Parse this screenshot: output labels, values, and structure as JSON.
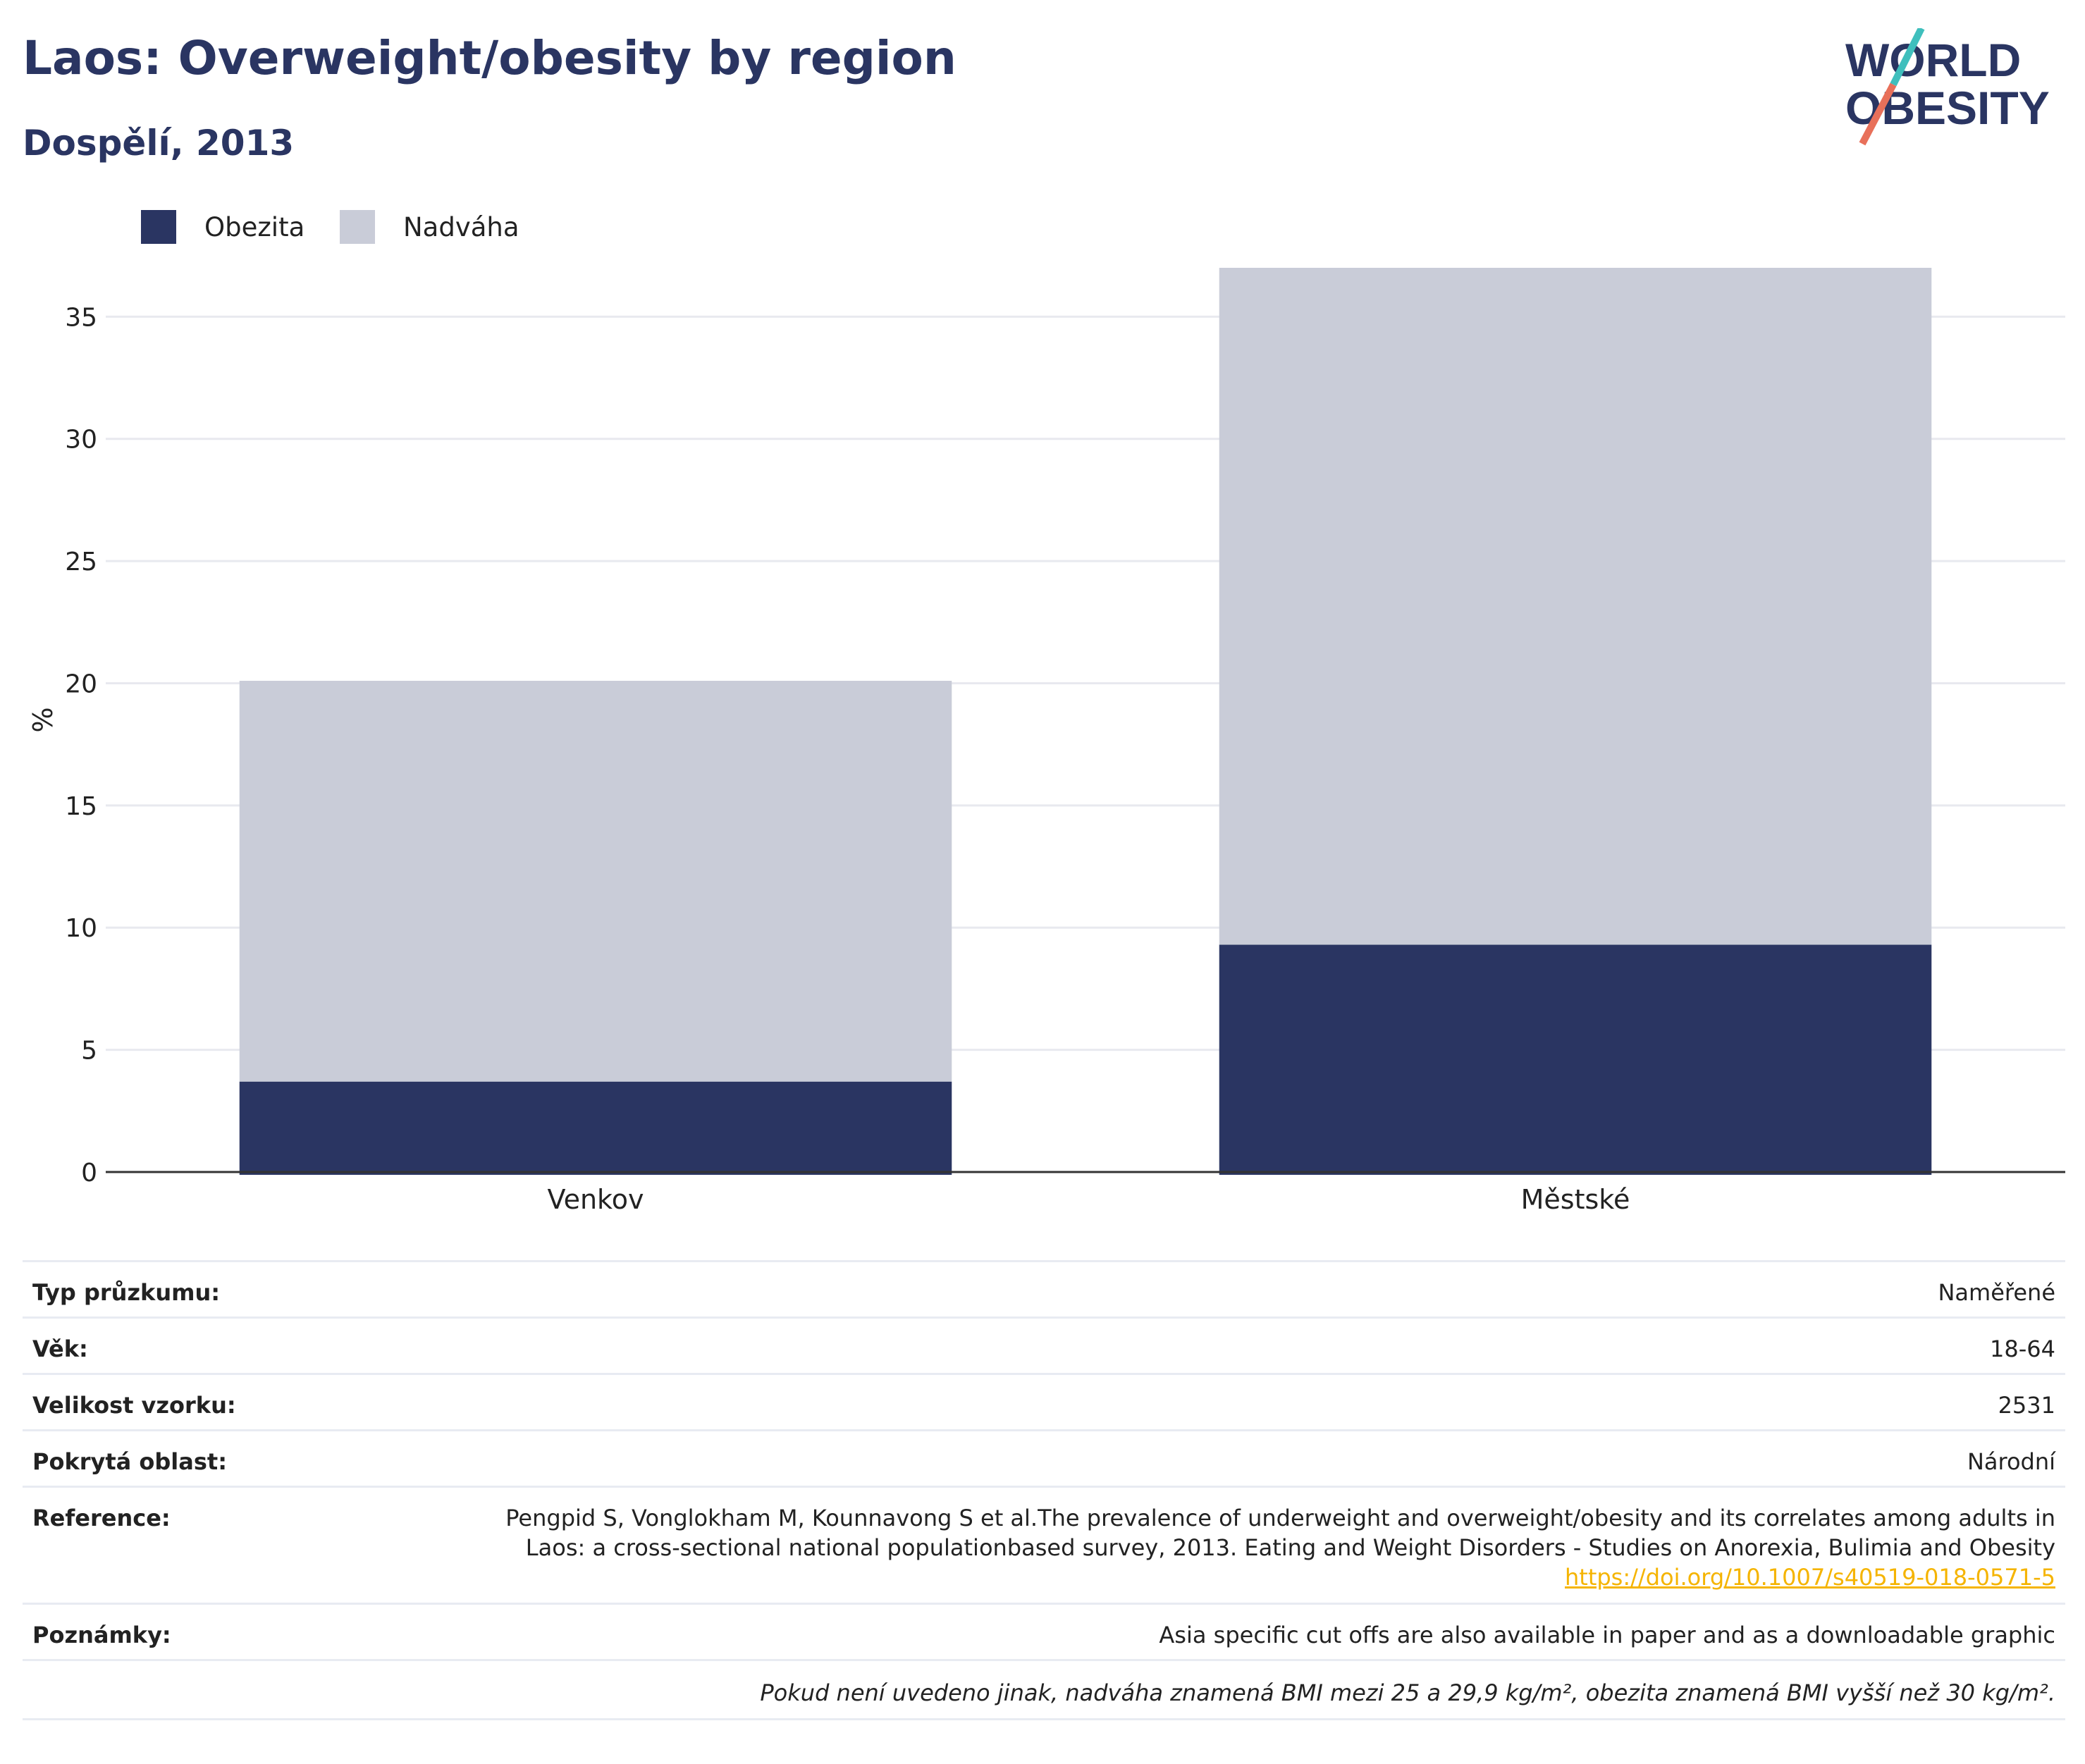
{
  "header": {
    "title": "Laos: Overweight/obesity by region",
    "subtitle": "Dospělí, 2013"
  },
  "logo": {
    "line1": "WORLD",
    "line2": "OBESITY",
    "slash_colors": [
      "#3fbfbd",
      "#e8705a"
    ],
    "text_color": "#2a3562"
  },
  "legend": {
    "items": [
      {
        "label": "Obezita",
        "color": "#2a3562"
      },
      {
        "label": "Nadváha",
        "color": "#c9ccd8"
      }
    ]
  },
  "chart_data": {
    "type": "bar",
    "stacked": true,
    "categories": [
      "Venkov",
      "Městské"
    ],
    "series": [
      {
        "name": "Obezita",
        "color": "#2a3562",
        "values": [
          3.7,
          9.3
        ]
      },
      {
        "name": "Nadváha",
        "color": "#c9ccd8",
        "values": [
          16.4,
          27.7
        ]
      }
    ],
    "ylabel": "%",
    "xlabel": "",
    "ylim": [
      0,
      37
    ],
    "yticks": [
      0,
      5,
      10,
      15,
      20,
      25,
      30,
      35
    ],
    "grid": true,
    "legend_position": "top-left"
  },
  "meta": {
    "survey_type": {
      "label": "Typ průzkumu:",
      "value": "Naměřené"
    },
    "age": {
      "label": "Věk:",
      "value": "18-64"
    },
    "sample_size": {
      "label": "Velikost vzorku:",
      "value": "2531"
    },
    "coverage": {
      "label": "Pokrytá oblast:",
      "value": "Národní"
    },
    "reference": {
      "label": "Reference:",
      "text": "Pengpid S, Vonglokham M, Kounnavong S et al.The prevalence of underweight and overweight/obesity and its correlates among adults in Laos: a cross-sectional national populationbased survey, 2013. Eating and Weight Disorders - Studies on Anorexia, Bulimia and Obesity ",
      "link": "https://doi.org/10.1007/s40519-018-0571-5"
    },
    "notes": {
      "label": "Poznámky:",
      "value": "Asia specific cut offs are also available in paper and as a downloadable graphic"
    },
    "footnote": "Pokud není uvedeno jinak, nadváha znamená BMI mezi 25 a 29,9 kg/m², obezita znamená BMI vyšší než 30 kg/m²."
  }
}
